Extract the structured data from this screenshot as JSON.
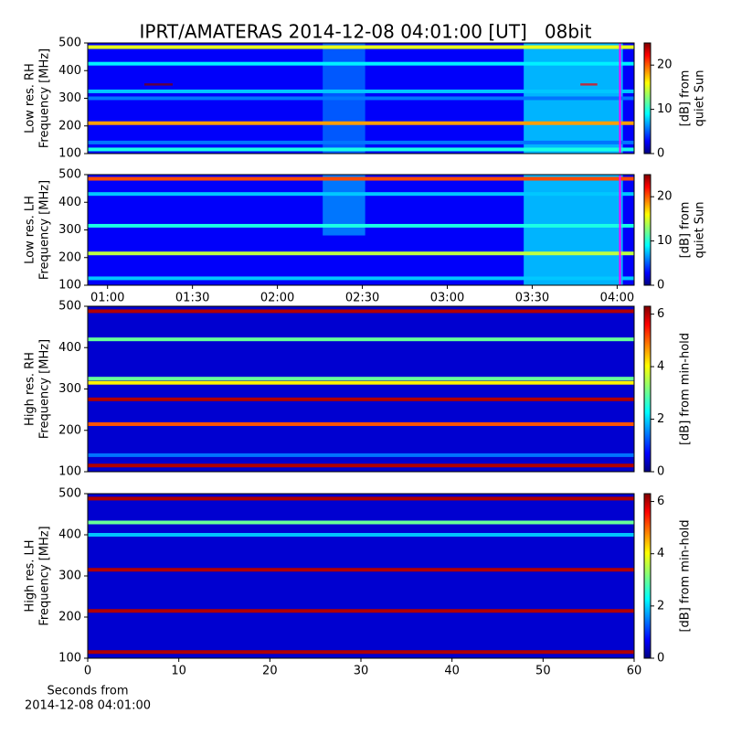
{
  "chart_data": [
    {
      "type": "heatmap",
      "title": "IPRT/AMATERAS 2014-12-08 04:01:00 [UT]   08bit",
      "ylabel": [
        "Low res. RH",
        "Frequency [MHz]"
      ],
      "ylim": [
        100,
        500
      ],
      "yticks": [
        100,
        200,
        300,
        400,
        500
      ],
      "xlim": [
        53,
        246
      ],
      "clim": [
        0,
        25
      ],
      "cticks": [
        0,
        10,
        20
      ],
      "clabel": [
        "[dB] from",
        "quiet Sun"
      ],
      "background": 3,
      "bands": [
        {
          "freq": 485,
          "value": 15
        },
        {
          "freq": 425,
          "value": 9
        },
        {
          "freq": 325,
          "value": 8
        },
        {
          "freq": 300,
          "value": 6
        },
        {
          "freq": 210,
          "value": 18
        },
        {
          "freq": 140,
          "value": 6
        },
        {
          "freq": 115,
          "value": 10
        }
      ],
      "blocks": [
        {
          "x0": 207,
          "x1": 242,
          "f0": 100,
          "f1": 500,
          "value": 9
        },
        {
          "x0": 136,
          "x1": 151,
          "f0": 100,
          "f1": 500,
          "value": 6
        },
        {
          "x0": 73,
          "x1": 83,
          "f0": 346,
          "f1": 354,
          "value": 25
        },
        {
          "x0": 227,
          "x1": 233,
          "f0": 346,
          "f1": 354,
          "value": 22
        }
      ],
      "marker": {
        "x": 241,
        "color": "#ff00ff"
      }
    },
    {
      "type": "heatmap",
      "ylabel": [
        "Low res. LH",
        "Frequency [MHz]"
      ],
      "ylim": [
        100,
        500
      ],
      "yticks": [
        100,
        200,
        300,
        400,
        500
      ],
      "xlim": [
        53,
        246
      ],
      "xticks": [
        {
          "value": 60,
          "label": "01:00"
        },
        {
          "value": 90,
          "label": "01:30"
        },
        {
          "value": 120,
          "label": "02:00"
        },
        {
          "value": 150,
          "label": "02:30"
        },
        {
          "value": 180,
          "label": "03:00"
        },
        {
          "value": 210,
          "label": "03:30"
        },
        {
          "value": 240,
          "label": "04:00"
        }
      ],
      "clim": [
        0,
        25
      ],
      "cticks": [
        0,
        10,
        20
      ],
      "clabel": [
        "[dB] from",
        "quiet Sun"
      ],
      "background": 3,
      "bands": [
        {
          "freq": 485,
          "value": 20
        },
        {
          "freq": 430,
          "value": 8
        },
        {
          "freq": 315,
          "value": 10
        },
        {
          "freq": 215,
          "value": 14
        },
        {
          "freq": 125,
          "value": 8
        }
      ],
      "blocks": [
        {
          "x0": 207,
          "x1": 242,
          "f0": 100,
          "f1": 500,
          "value": 9
        },
        {
          "x0": 136,
          "x1": 151,
          "f0": 280,
          "f1": 500,
          "value": 7
        }
      ],
      "marker": {
        "x": 241,
        "color": "#ff00ff"
      }
    },
    {
      "type": "heatmap",
      "ylabel": [
        "High res. RH",
        "Frequency [MHz]"
      ],
      "ylim": [
        100,
        500
      ],
      "yticks": [
        100,
        200,
        300,
        400,
        500
      ],
      "xlim": [
        0,
        60
      ],
      "clim": [
        0,
        6.3
      ],
      "cticks": [
        0,
        2,
        4,
        6
      ],
      "clabel": [
        "[dB] from min-hold"
      ],
      "background": 0.5,
      "bands": [
        {
          "freq": 488,
          "value": 6
        },
        {
          "freq": 420,
          "value": 3
        },
        {
          "freq": 325,
          "value": 3
        },
        {
          "freq": 315,
          "value": 4
        },
        {
          "freq": 275,
          "value": 6
        },
        {
          "freq": 215,
          "value": 5
        },
        {
          "freq": 140,
          "value": 1.5
        },
        {
          "freq": 115,
          "value": 6
        }
      ],
      "blocks": []
    },
    {
      "type": "heatmap",
      "ylabel": [
        "High res. LH",
        "Frequency [MHz]"
      ],
      "ylim": [
        100,
        500
      ],
      "yticks": [
        100,
        200,
        300,
        400,
        500
      ],
      "xlim": [
        0,
        60
      ],
      "xticks": [
        0,
        10,
        20,
        30,
        40,
        50,
        60
      ],
      "xlabel": [
        "Seconds from",
        "2014-12-08 04:01:00"
      ],
      "clim": [
        0,
        6.3
      ],
      "cticks": [
        0,
        2,
        4,
        6
      ],
      "clabel": [
        "[dB] from min-hold"
      ],
      "background": 0.5,
      "bands": [
        {
          "freq": 488,
          "value": 6
        },
        {
          "freq": 430,
          "value": 3
        },
        {
          "freq": 400,
          "value": 2
        },
        {
          "freq": 315,
          "value": 6
        },
        {
          "freq": 215,
          "value": 6
        },
        {
          "freq": 115,
          "value": 6
        }
      ],
      "blocks": []
    }
  ]
}
